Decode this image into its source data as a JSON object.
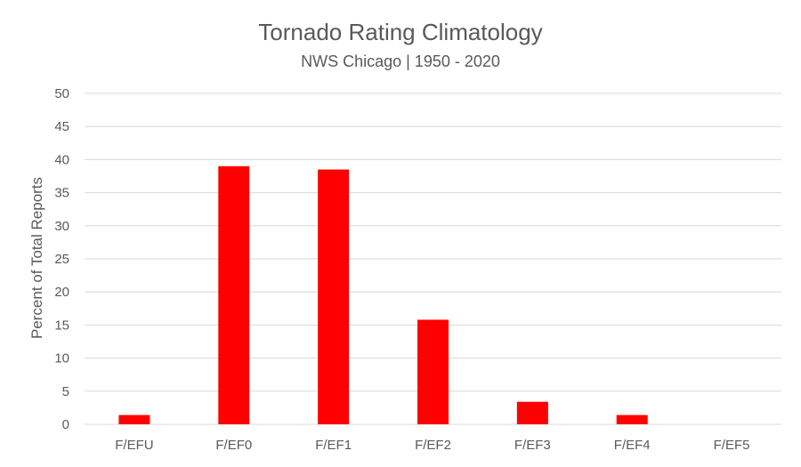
{
  "chart_data": {
    "type": "bar",
    "title": "Tornado Rating Climatology",
    "subtitle": "NWS Chicago | 1950 - 2020",
    "ylabel": "Percent of Total Reports",
    "xlabel": "",
    "categories": [
      "F/EFU",
      "F/EF0",
      "F/EF1",
      "F/EF2",
      "F/EF3",
      "F/EF4",
      "F/EF5"
    ],
    "values": [
      1.4,
      39.0,
      38.5,
      15.8,
      3.4,
      1.4,
      0
    ],
    "ylim": [
      0,
      50
    ],
    "yticks": [
      0,
      5,
      10,
      15,
      20,
      25,
      30,
      35,
      40,
      45,
      50
    ],
    "grid": true,
    "legend": "none",
    "bar_color": "#ff0000"
  }
}
